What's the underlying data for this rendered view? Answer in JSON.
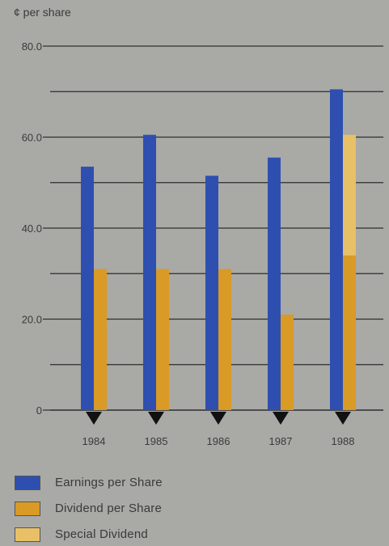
{
  "chart_data": {
    "type": "bar",
    "title": "",
    "ylabel": "¢ per share",
    "xlabel": "",
    "ylim": [
      0,
      80
    ],
    "yticks": [
      "0",
      "20.0",
      "40.0",
      "60.0",
      "80.0"
    ],
    "ytick_values": [
      0,
      20,
      40,
      60,
      80
    ],
    "gridlines_at": [
      10,
      20,
      30,
      40,
      50,
      60,
      70,
      80
    ],
    "grid": true,
    "legend_position": "bottom-left",
    "categories": [
      "1984",
      "1985",
      "1986",
      "1987",
      "1988"
    ],
    "series": [
      {
        "name": "Earnings per Share",
        "values": [
          53.5,
          60.5,
          51.5,
          55.5,
          70.5
        ],
        "color": "#2e4fb0"
      },
      {
        "name": "Dividend per Share",
        "values": [
          31,
          31,
          31,
          21,
          34
        ],
        "color": "#d99a26"
      },
      {
        "name": "Special Dividend",
        "values": [
          0,
          0,
          0,
          0,
          26.5
        ],
        "color": "#e8c067",
        "stacked_on": "Dividend per Share"
      }
    ]
  },
  "colors": {
    "background": "#a9a9a6",
    "gridline": "#2e2e2e",
    "text": "#3a3a3a",
    "marker": "#111111"
  },
  "legend": {
    "items": [
      {
        "label": "Earnings per Share",
        "color": "#2e4fb0"
      },
      {
        "label": "Dividend per Share",
        "color": "#d99a26"
      },
      {
        "label": "Special Dividend",
        "color": "#e8c067"
      }
    ]
  }
}
